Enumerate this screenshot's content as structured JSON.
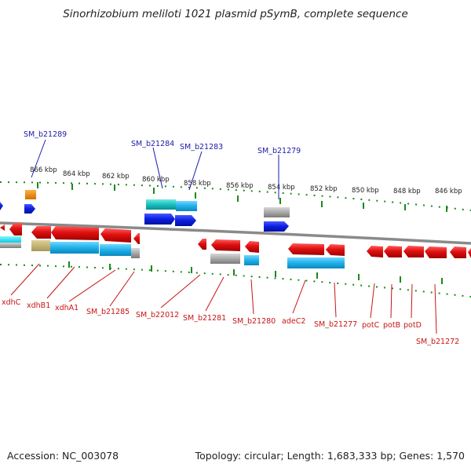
{
  "title": "Sinorhizobium meliloti 1021 plasmid pSymB, complete sequence",
  "footer": {
    "accession": "Accession: NC_003078",
    "summary": "Topology: circular; Length: 1,683,333 bp; Genes: 1,570"
  },
  "colors": {
    "forward_gene": "#e01010",
    "cds_cyan": "#20b8e8",
    "blue_feature": "#0a1ee0",
    "grey_feature": "#a8a8a8",
    "orange_feature": "#f08a00",
    "olive_feature": "#c8b870",
    "backbone": "#8a8a8a",
    "tick_green": "#1a8a1a",
    "label_blue": "#1a1aa8",
    "label_red": "#c81414"
  },
  "scale_ticks": [
    "866 kbp",
    "864 kbp",
    "862 kbp",
    "860 kbp",
    "858 kbp",
    "856 kbp",
    "854 kbp",
    "852 kbp",
    "850 kbp",
    "848 kbp",
    "846 kbp"
  ],
  "labels_top": [
    "SM_b21289",
    "SM_b21284",
    "SM_b21283",
    "SM_b21279"
  ],
  "labels_bottom": [
    "xdhC",
    "xdhB1",
    "xdhA1",
    "SM_b21285",
    "SM_b22012",
    "SM_b21281",
    "SM_b21280",
    "adeC2",
    "SM_b21277",
    "potC",
    "potB",
    "potD",
    "SM_b21272"
  ]
}
